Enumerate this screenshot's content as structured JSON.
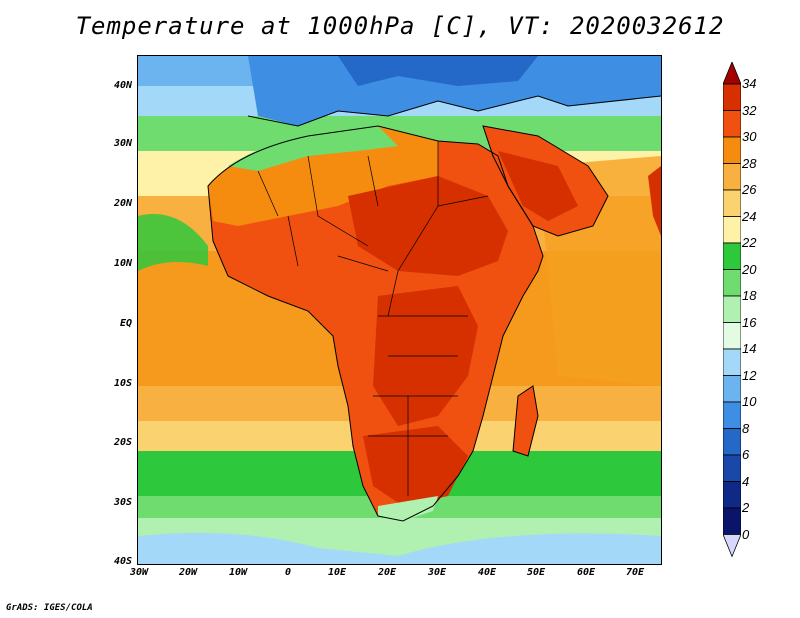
{
  "title": "Temperature at 1000hPa [C], VT: 2020032612",
  "credit": "GrADS: IGES/COLA",
  "axes": {
    "lat_labels": [
      "40N",
      "30N",
      "20N",
      "10N",
      "EQ",
      "10S",
      "20S",
      "30S",
      "40S"
    ],
    "lon_labels": [
      "30W",
      "20W",
      "10W",
      "0",
      "10E",
      "20E",
      "30E",
      "40E",
      "50E",
      "60E",
      "70E"
    ]
  },
  "colorbar": {
    "labels": [
      "34",
      "32",
      "30",
      "28",
      "26",
      "24",
      "22",
      "20",
      "18",
      "16",
      "14",
      "12",
      "10",
      "8",
      "6",
      "4",
      "2",
      "0"
    ],
    "colors": [
      "#a50000",
      "#d73000",
      "#f05010",
      "#f58c10",
      "#f8b040",
      "#fbd270",
      "#fdf2a8",
      "#2ec83c",
      "#6edc6e",
      "#b0f0b0",
      "#e2fbe2",
      "#a4d8f8",
      "#6cb4f0",
      "#3e8ee4",
      "#2468c8",
      "#1a48a8",
      "#0e2a86",
      "#0a1468"
    ],
    "over_color": "#a50000",
    "under_color": "#d8d8ff"
  },
  "map": {
    "variable": "Temperature at 1000hPa",
    "units": "C",
    "valid_time": "2020032612",
    "lat_range": [
      -40,
      45
    ],
    "lon_range": [
      -30,
      75
    ]
  }
}
